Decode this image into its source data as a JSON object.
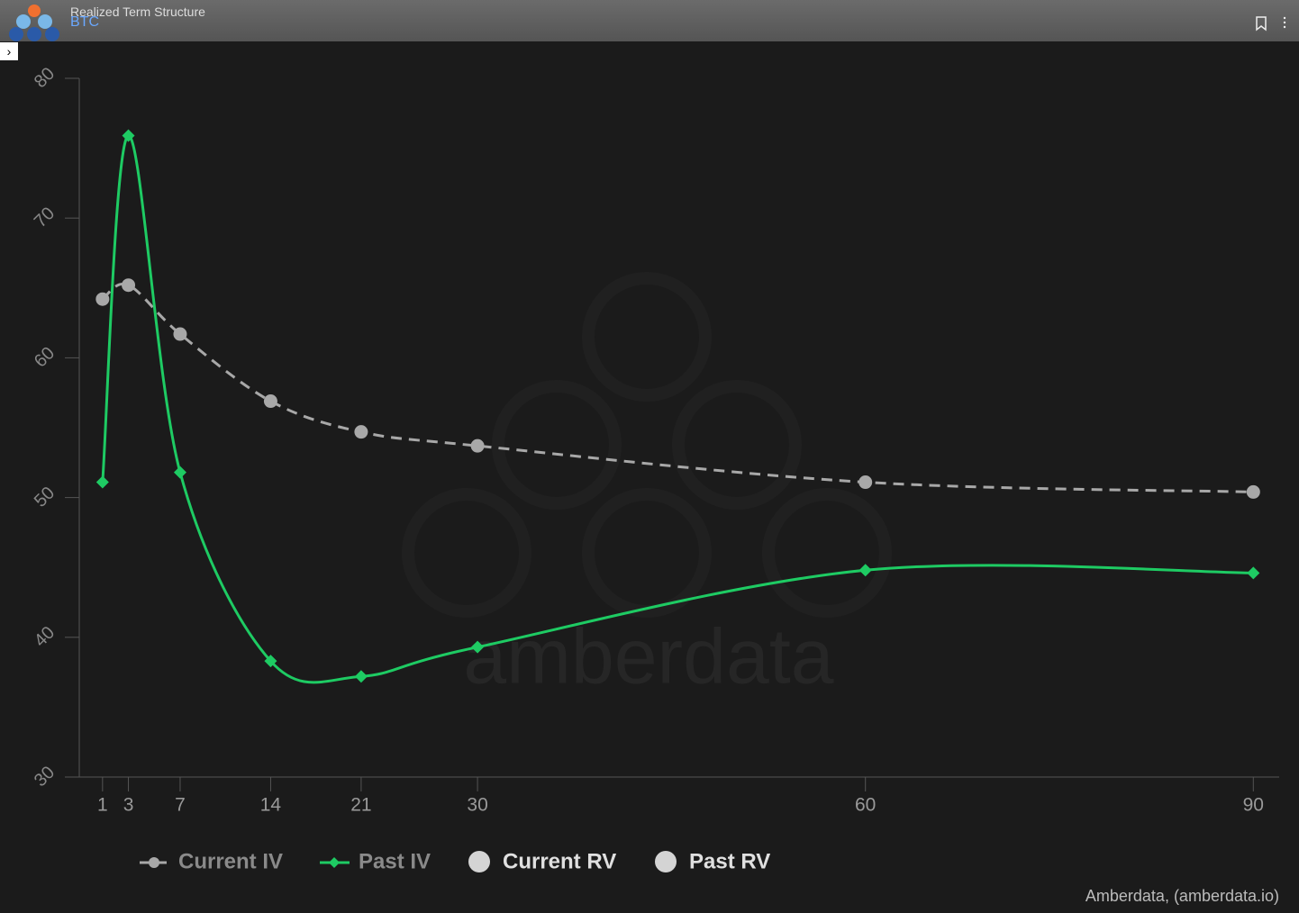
{
  "header": {
    "title": "Realized Term Structure",
    "subtitle": "BTC"
  },
  "chart_data": {
    "type": "line",
    "x": [
      1,
      3,
      7,
      14,
      21,
      30,
      60,
      90
    ],
    "series": [
      {
        "name": "Current IV",
        "color": "#a8a8a8",
        "dashed": true,
        "marker": "circle",
        "values": [
          64.2,
          65.2,
          61.7,
          56.9,
          54.7,
          53.7,
          51.1,
          50.4
        ]
      },
      {
        "name": "Past IV",
        "color": "#1ecb63",
        "dashed": false,
        "marker": "diamond",
        "values": [
          51.1,
          75.9,
          51.8,
          38.3,
          37.2,
          39.3,
          44.8,
          44.6
        ]
      },
      {
        "name": "Current RV",
        "color": "#d4d4d4",
        "dashed": false,
        "marker": "circle",
        "values": [
          null,
          null,
          null,
          null,
          null,
          null,
          null,
          null
        ]
      },
      {
        "name": "Past RV",
        "color": "#d4d4d4",
        "dashed": false,
        "marker": "circle",
        "values": [
          null,
          null,
          null,
          null,
          null,
          null,
          null,
          null
        ]
      }
    ],
    "xlim": [
      -0.8,
      92
    ],
    "xticks": [
      1,
      3,
      7,
      14,
      21,
      30,
      60,
      90
    ],
    "ylim": [
      30,
      80
    ],
    "yticks": [
      30,
      40,
      50,
      60,
      70,
      80
    ],
    "watermark": "amberdata",
    "credit": "Amberdata, (amberdata.io)"
  }
}
